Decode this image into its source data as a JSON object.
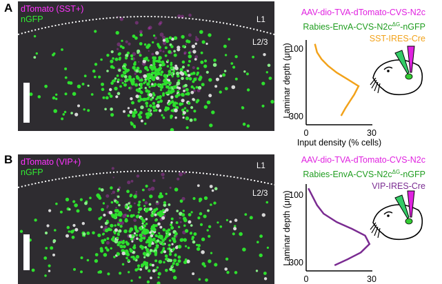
{
  "panels": [
    {
      "letter": "A",
      "image": {
        "label_tomato": "dTomato (SST+)",
        "label_gfp": "nGFP",
        "layer_l1": "L1",
        "layer_l23": "L2/3"
      },
      "legend": {
        "line1": "AAV-dio-TVA-dTomato-CVS-N2c",
        "line2_main": "Rabies-EnvA-CVS-N2c",
        "line2_sup": "ΔG",
        "line2_end": "-nGFP",
        "line3": "SST-IRES-Cre"
      },
      "colors": {
        "trace": "#f2a21a"
      }
    },
    {
      "letter": "B",
      "image": {
        "label_tomato": "dTomato (VIP+)",
        "label_gfp": "nGFP",
        "layer_l1": "L1",
        "layer_l23": "L2/3"
      },
      "legend": {
        "line1": "AAV-dio-TVA-dTomato-CVS-N2c",
        "line2_main": "Rabies-EnvA-CVS-N2c",
        "line2_sup": "ΔG",
        "line2_end": "-nGFP",
        "line3": "VIP-IRES-Cre"
      },
      "colors": {
        "trace": "#7a2b91"
      }
    }
  ],
  "chart_data": [
    {
      "type": "line",
      "panel": "A",
      "xlabel": "Input density (% cells)",
      "ylabel": "Laminar depth (μm)",
      "xlim": [
        0,
        30
      ],
      "ylim": [
        70,
        320
      ],
      "y_inverted": true,
      "xticks": [
        0,
        30
      ],
      "yticks": [
        100,
        300
      ],
      "series": [
        {
          "name": "SST-IRES-Cre",
          "points": [
            [
              4,
              85
            ],
            [
              5,
              110
            ],
            [
              7,
              130
            ],
            [
              10,
              150
            ],
            [
              14,
              170
            ],
            [
              19,
              190
            ],
            [
              24,
              210
            ],
            [
              22,
              235
            ],
            [
              20,
              255
            ],
            [
              18,
              275
            ],
            [
              16,
              298
            ]
          ]
        }
      ]
    },
    {
      "type": "line",
      "panel": "B",
      "xlabel": "",
      "ylabel": "Laminar depth (μm)",
      "xlim": [
        0,
        30
      ],
      "ylim": [
        70,
        320
      ],
      "y_inverted": true,
      "xticks": [
        0,
        30
      ],
      "yticks": [
        100,
        300
      ],
      "series": [
        {
          "name": "VIP-IRES-Cre",
          "points": [
            [
              1,
              80
            ],
            [
              3,
              105
            ],
            [
              5,
              130
            ],
            [
              8,
              155
            ],
            [
              14,
              180
            ],
            [
              21,
              200
            ],
            [
              27,
              220
            ],
            [
              29,
              245
            ],
            [
              25,
              270
            ],
            [
              19,
              290
            ],
            [
              13,
              308
            ]
          ]
        }
      ]
    }
  ]
}
